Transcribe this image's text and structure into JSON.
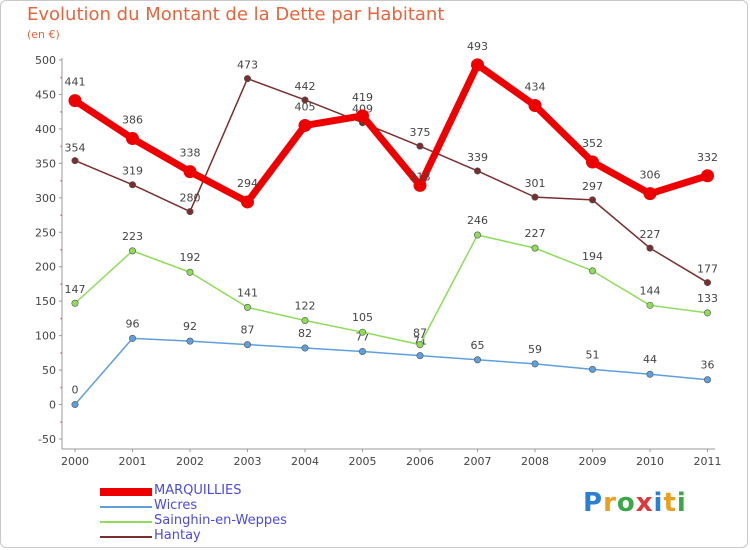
{
  "chart_data": {
    "type": "line",
    "title": "Evolution du Montant de la Dette par Habitant",
    "subtitle": "(en €)",
    "categories": [
      "2000",
      "2001",
      "2002",
      "2003",
      "2004",
      "2005",
      "2006",
      "2007",
      "2008",
      "2009",
      "2010",
      "2011"
    ],
    "y_ticks": [
      500,
      450,
      400,
      350,
      300,
      250,
      200,
      150,
      100,
      50,
      0,
      -50
    ],
    "ylim": [
      -50,
      500
    ],
    "grid": false,
    "legend_position": "bottom-left",
    "series": [
      {
        "name": "MARQUILLIES",
        "color": "#ee0000",
        "values": [
          441,
          386,
          338,
          294,
          405,
          419,
          318,
          493,
          434,
          352,
          306,
          332
        ]
      },
      {
        "name": "Wicres",
        "color": "#5f9fdc",
        "values": [
          0,
          96,
          92,
          87,
          82,
          77,
          71,
          65,
          59,
          51,
          44,
          36
        ]
      },
      {
        "name": "Sainghin-en-Weppes",
        "color": "#8ddc5a",
        "values": [
          147,
          223,
          192,
          141,
          122,
          105,
          87,
          246,
          227,
          194,
          144,
          133
        ]
      },
      {
        "name": "Hantay",
        "color": "#7a2e2e",
        "values": [
          354,
          319,
          280,
          473,
          442,
          409,
          375,
          339,
          301,
          297,
          227,
          177
        ]
      }
    ]
  },
  "logo": {
    "text": "Proxiti"
  }
}
